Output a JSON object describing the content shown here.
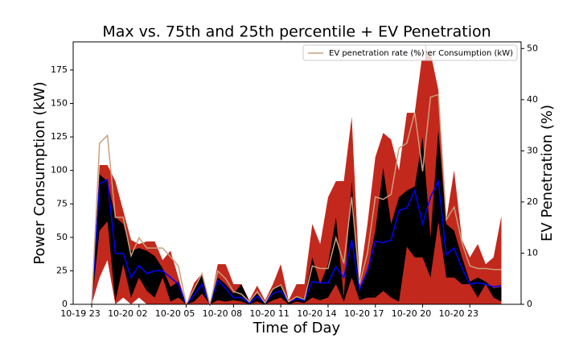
{
  "chart_data": {
    "type": "band_line",
    "title": "Max vs. 75th and 25th percentile + EV Penetration",
    "xlabel": "Time of Day",
    "ylabel": "Power Consumption (kW)",
    "y2label": "EV Penetration (%)",
    "categories": [
      "10-19 23",
      null,
      null,
      null,
      null,
      null,
      "10-20 02",
      null,
      null,
      null,
      null,
      null,
      "10-20 05",
      null,
      null,
      null,
      null,
      null,
      "10-20 08",
      null,
      null,
      null,
      null,
      null,
      "10-20 11",
      null,
      null,
      null,
      null,
      null,
      "10-20 14",
      null,
      null,
      null,
      null,
      null,
      "10-20 17",
      null,
      null,
      null,
      null,
      null,
      "10-20 20",
      null,
      null,
      null,
      null,
      null,
      "10-20 23",
      null,
      null,
      null,
      null
    ],
    "bands": [
      {
        "color": "#c3281d",
        "upper": [
          0,
          104,
          104,
          92,
          70,
          48,
          45,
          47,
          47,
          33,
          40,
          20,
          0,
          16,
          23,
          0,
          30,
          30,
          15,
          15,
          3,
          14,
          3,
          15,
          30,
          3,
          15,
          15,
          60,
          45,
          80,
          92,
          92,
          140,
          18,
          60,
          110,
          128,
          123,
          100,
          143,
          143,
          188,
          188,
          160,
          63,
          100,
          48,
          35,
          45,
          30,
          35,
          66
        ],
        "lower": [
          0,
          20,
          33,
          0,
          5,
          0,
          5,
          0,
          0,
          0,
          0,
          0,
          0,
          0,
          0,
          0,
          0,
          0,
          0,
          0,
          0,
          0,
          0,
          0,
          0,
          0,
          0,
          0,
          0,
          0,
          0,
          0,
          0,
          0,
          0,
          0,
          0,
          0,
          0,
          0,
          0,
          0,
          0,
          0,
          0,
          0,
          0,
          0,
          0,
          0,
          0,
          0,
          0
        ]
      },
      {
        "color": "#000000",
        "upper": [
          0,
          97,
          92,
          65,
          60,
          40,
          42,
          40,
          36,
          27,
          13,
          17,
          0,
          12,
          22,
          0,
          20,
          15,
          8,
          15,
          2,
          8,
          1,
          12,
          15,
          2,
          5,
          5,
          35,
          15,
          30,
          65,
          5,
          92,
          12,
          25,
          55,
          102,
          60,
          80,
          85,
          88,
          125,
          50,
          130,
          60,
          55,
          35,
          17,
          20,
          17,
          12,
          13
        ],
        "lower": [
          0,
          55,
          62,
          2,
          30,
          5,
          20,
          10,
          5,
          20,
          2,
          5,
          0,
          2,
          8,
          0,
          3,
          2,
          3,
          2,
          0,
          2,
          0,
          3,
          5,
          0,
          2,
          1,
          5,
          3,
          5,
          15,
          2,
          20,
          3,
          5,
          5,
          10,
          5,
          2,
          43,
          35,
          35,
          20,
          62,
          20,
          20,
          15,
          15,
          5,
          15,
          5,
          2
        ]
      }
    ],
    "series": [
      {
        "name": "Power Consumption (kW)",
        "color": "#0000ff",
        "values": [
          0,
          90,
          93,
          38,
          38,
          20,
          29,
          23,
          25,
          25,
          20,
          15,
          0,
          7,
          15,
          0,
          18,
          12,
          5,
          5,
          1,
          6,
          1,
          8,
          10,
          2,
          4,
          3,
          17,
          16,
          16,
          28,
          20,
          48,
          11,
          25,
          47,
          46,
          48,
          70,
          72,
          85,
          60,
          80,
          92,
          37,
          42,
          27,
          15,
          16,
          15,
          13,
          14
        ]
      },
      {
        "name": "EV penetration rate (%)",
        "color": "#c8a07e",
        "axis": "y2",
        "values": [
          0,
          31.5,
          33,
          17,
          17,
          9.5,
          13,
          11,
          11,
          11,
          9.3,
          7.5,
          0,
          3,
          6,
          0,
          6.5,
          5,
          2.5,
          2,
          0.5,
          2.5,
          0.3,
          3,
          3.8,
          0.5,
          1.5,
          1,
          7.5,
          7,
          7,
          13,
          8,
          21,
          4,
          10,
          21,
          20.5,
          21.5,
          30.5,
          31.5,
          37.5,
          26,
          40.5,
          41,
          16.5,
          19,
          12,
          7.5,
          7,
          7,
          6.8,
          6.8
        ]
      }
    ],
    "ylim": [
      0,
      196
    ],
    "yticks": [
      0,
      25,
      50,
      75,
      100,
      125,
      150,
      175
    ],
    "y2lim": [
      0,
      51.3
    ],
    "y2ticks": [
      0,
      10,
      20,
      30,
      40,
      50
    ]
  }
}
